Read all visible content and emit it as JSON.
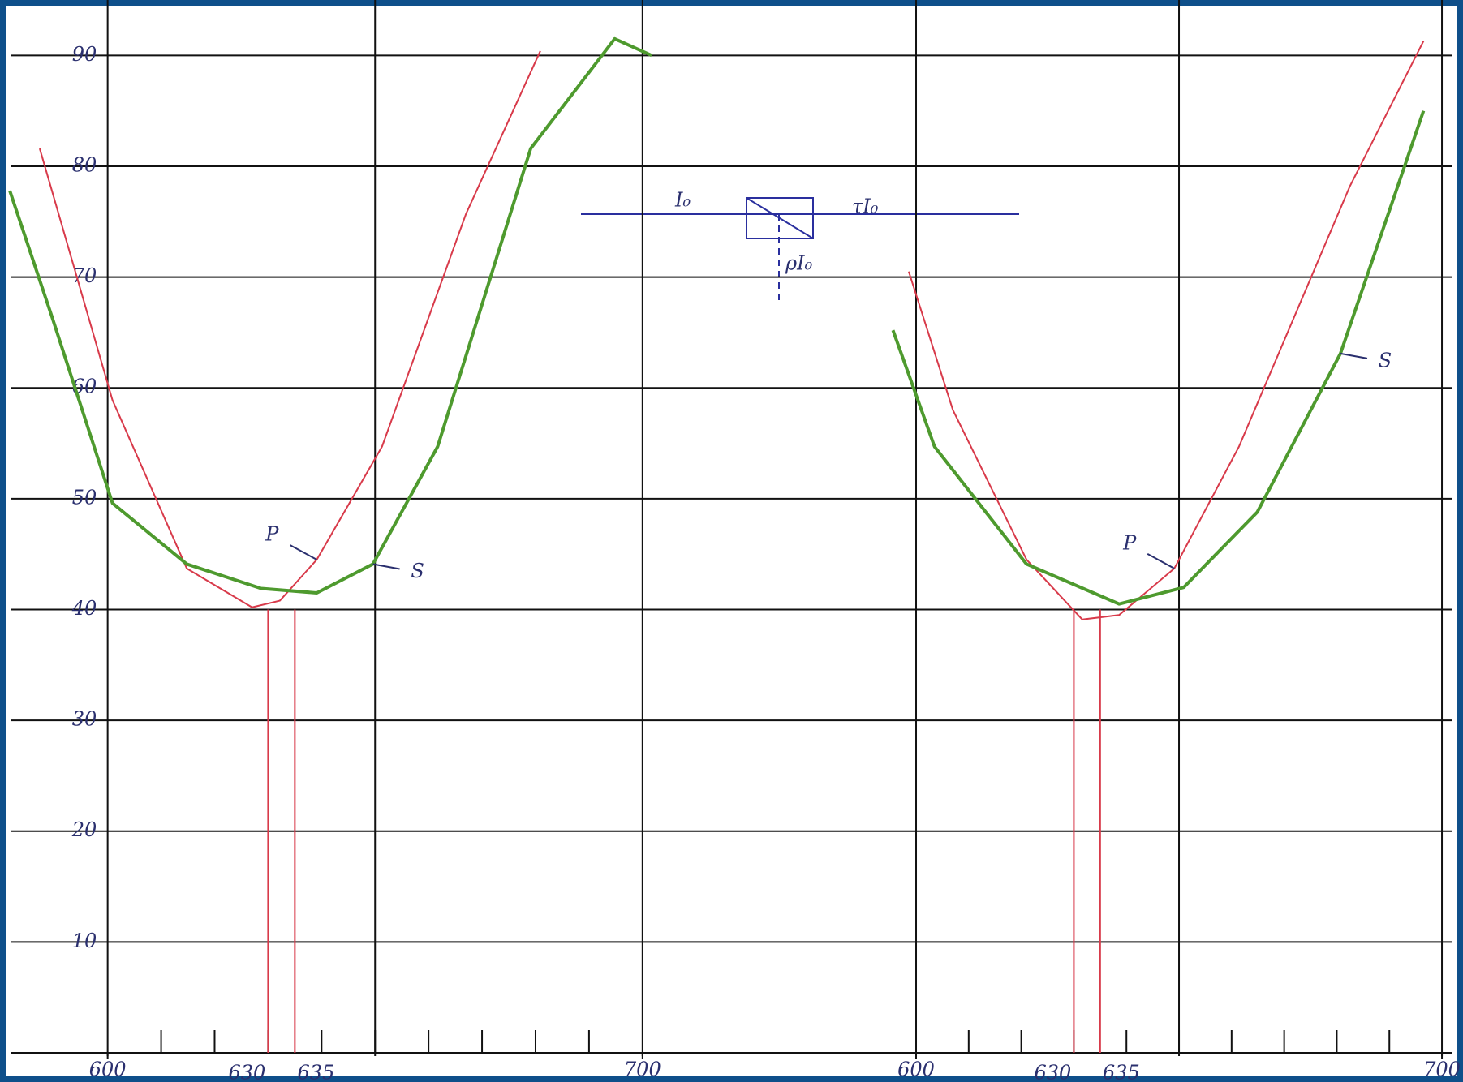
{
  "chart_data": [
    {
      "type": "line",
      "xlim": [
        582,
        702
      ],
      "ylim": [
        0,
        95
      ],
      "xticks": [
        600,
        700
      ],
      "xgrid": [
        600,
        650,
        700
      ],
      "xminor": [
        610,
        620,
        630,
        640,
        650,
        660,
        670,
        680,
        690
      ],
      "yticks": [
        10,
        20,
        30,
        40,
        50,
        60,
        70,
        80,
        90
      ],
      "markers": [
        630,
        635
      ],
      "marker_color": "#d83a4a",
      "series": [
        {
          "name": "P",
          "color": "#d83a4a",
          "x": [
            587.3,
            600.9,
            614.8,
            627,
            632.2,
            639.1,
            651.3,
            667,
            680.9
          ],
          "values": [
            81.6,
            58.9,
            43.7,
            40.2,
            40.8,
            44.5,
            54.7,
            75.7,
            90.4
          ]
        },
        {
          "name": "S",
          "color": "#4e9a2e",
          "x": [
            581.7,
            589.6,
            600.9,
            614.8,
            628.7,
            639.1,
            649.6,
            661.7,
            679.1,
            694.8,
            701.7
          ],
          "values": [
            77.8,
            66.4,
            49.6,
            44.1,
            41.9,
            41.5,
            44.1,
            54.7,
            81.6,
            91.5,
            90
          ]
        }
      ]
    },
    {
      "type": "line",
      "xlim": [
        550,
        702
      ],
      "ylim": [
        0,
        95
      ],
      "xticks": [
        600,
        700
      ],
      "xgrid": [
        600,
        650,
        700
      ],
      "xminor": [
        610,
        620,
        630,
        640,
        650,
        660,
        670,
        680,
        690
      ],
      "markers": [
        630,
        635
      ],
      "marker_color": "#d83a4a",
      "series": [
        {
          "name": "P",
          "color": "#d83a4a",
          "x": [
            598.6,
            607,
            621,
            631.6,
            638.6,
            649.1,
            661.4,
            682.5,
            696.5
          ],
          "values": [
            70.5,
            58,
            44.5,
            39.1,
            39.5,
            43.7,
            54.7,
            78.2,
            91.3
          ]
        },
        {
          "name": "S",
          "color": "#4e9a2e",
          "x": [
            595.6,
            603.5,
            621,
            638.6,
            650.9,
            664.9,
            680.7,
            696.5
          ],
          "values": [
            65.2,
            54.7,
            44.1,
            40.5,
            42,
            48.8,
            63.1,
            85
          ]
        }
      ]
    }
  ],
  "diagram": {
    "labels": [
      "I₀",
      "τI₀",
      "ρI₀"
    ]
  }
}
